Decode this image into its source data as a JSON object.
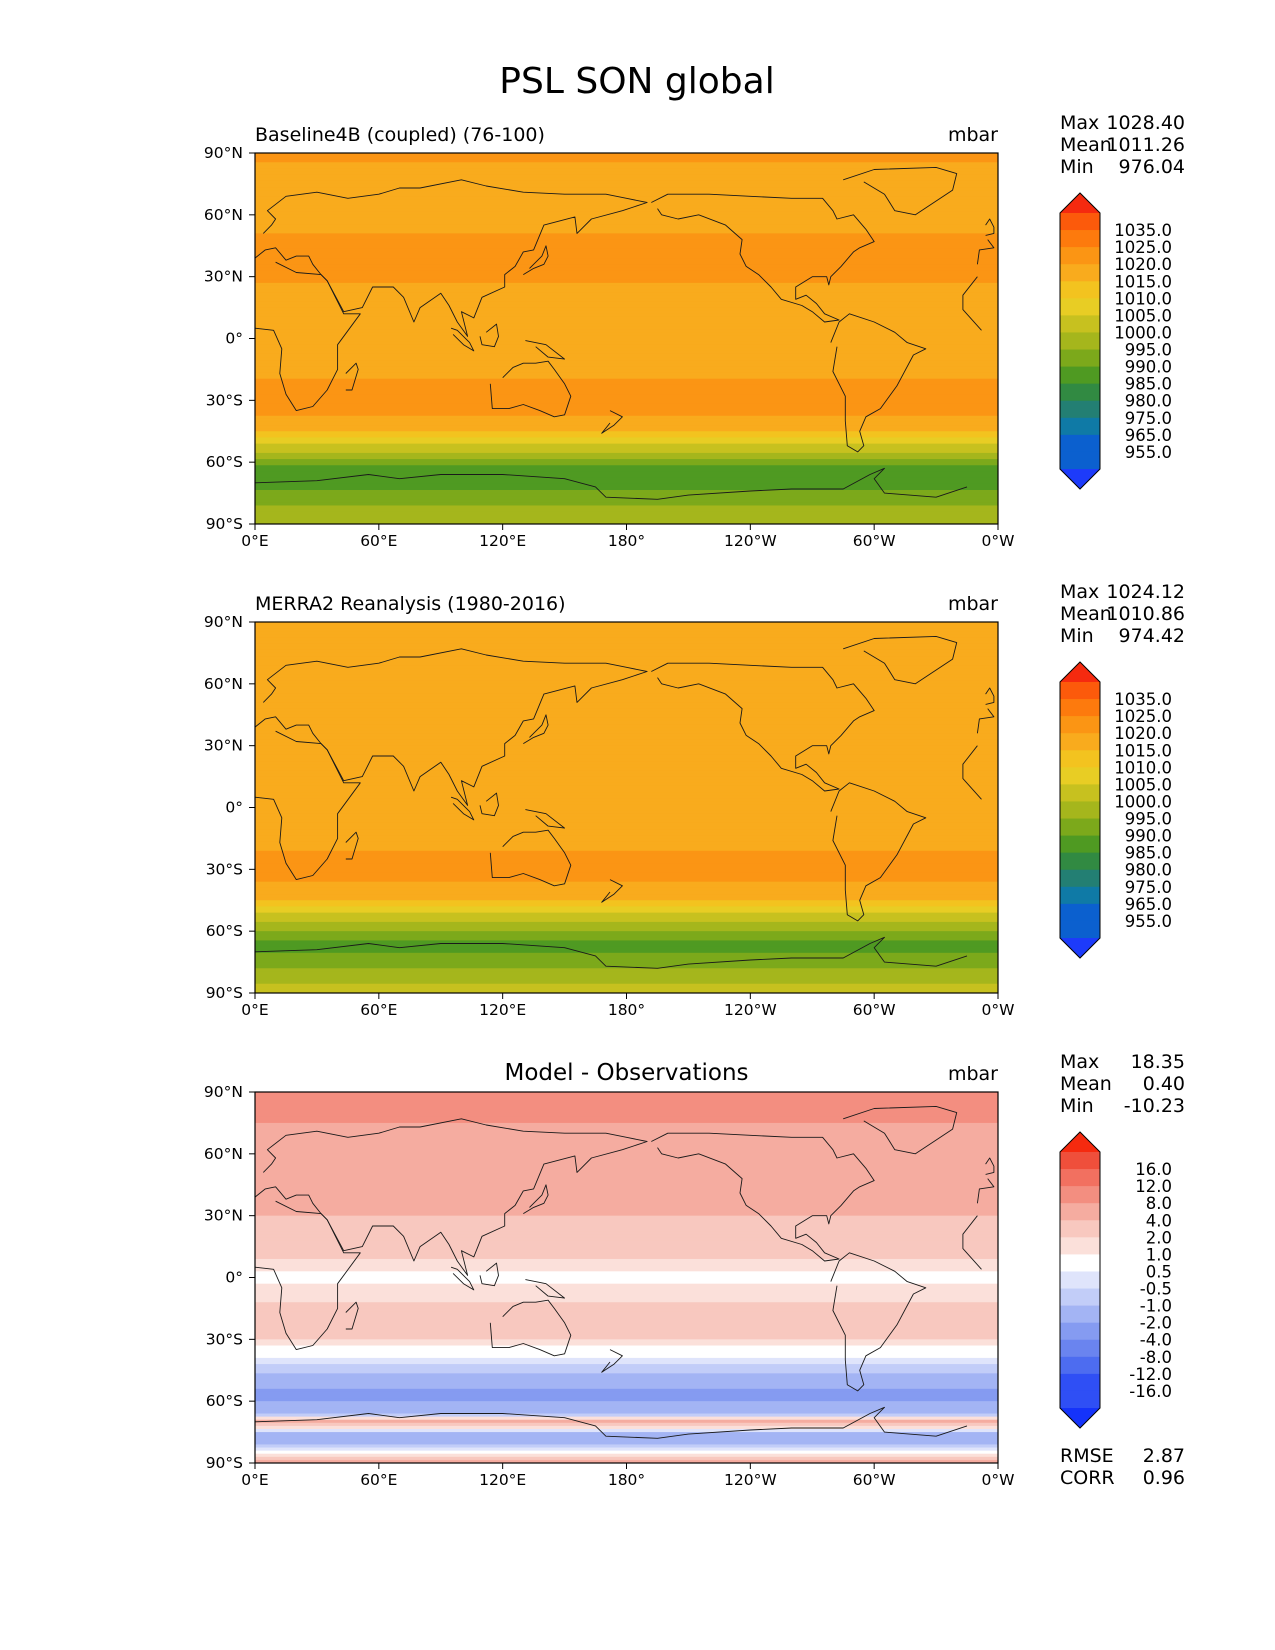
{
  "figure": {
    "title": "PSL SON global"
  },
  "axes": {
    "x_ticks": [
      "0°E",
      "60°E",
      "120°E",
      "180°",
      "120°W",
      "60°W",
      "0°W"
    ],
    "y_ticks": [
      "90°N",
      "60°N",
      "30°N",
      "0°",
      "30°S",
      "60°S",
      "90°S"
    ]
  },
  "chart_data": [
    {
      "type": "heatmap",
      "left_title": "Baseline4B (coupled) (76-100)",
      "center_title": "",
      "units": "mbar",
      "stats": [
        {
          "label": "Max",
          "value": "1028.40"
        },
        {
          "label": "Mean",
          "value": "1011.26"
        },
        {
          "label": "Min",
          "value": "976.04"
        }
      ],
      "xlim": [
        0,
        360
      ],
      "ylim": [
        -90,
        90
      ],
      "colorbar": {
        "labels": [
          "1035.0",
          "1025.0",
          "1020.0",
          "1015.0",
          "1010.0",
          "1005.0",
          "1000.0",
          "995.0",
          "990.0",
          "985.0",
          "980.0",
          "975.0",
          "965.0",
          "955.0"
        ],
        "colors": [
          "#f52a0f",
          "#fc5a0b",
          "#fd7a0d",
          "#fb9514",
          "#f9ab1d",
          "#f3c31f",
          "#e8cd24",
          "#c7c11f",
          "#a5b61c",
          "#7ca91b",
          "#4f9a22",
          "#318a42",
          "#237f73",
          "#0f7aa6",
          "#0b60cf",
          "#1d3bfa"
        ]
      },
      "band_profile": {
        "lat": [
          90,
          75,
          60,
          45,
          30,
          15,
          0,
          -15,
          -30,
          -45,
          -55,
          -62,
          -68,
          -75,
          -85,
          -90
        ],
        "value": [
          1016,
          1013,
          1012,
          1017,
          1016,
          1011,
          1010,
          1013,
          1020,
          1010,
          995,
          985,
          980,
          987,
          992,
          995
        ]
      }
    },
    {
      "type": "heatmap",
      "left_title": "MERRA2 Reanalysis (1980-2016)",
      "center_title": "",
      "units": "mbar",
      "stats": [
        {
          "label": "Max",
          "value": "1024.12"
        },
        {
          "label": "Mean",
          "value": "1010.86"
        },
        {
          "label": "Min",
          "value": "974.42"
        }
      ],
      "xlim": [
        0,
        360
      ],
      "ylim": [
        -90,
        90
      ],
      "colorbar": {
        "labels": [
          "1035.0",
          "1025.0",
          "1020.0",
          "1015.0",
          "1010.0",
          "1005.0",
          "1000.0",
          "995.0",
          "990.0",
          "985.0",
          "980.0",
          "975.0",
          "965.0",
          "955.0"
        ],
        "colors": [
          "#f52a0f",
          "#fc5a0b",
          "#fd7a0d",
          "#fb9514",
          "#f9ab1d",
          "#f3c31f",
          "#e8cd24",
          "#c7c11f",
          "#a5b61c",
          "#7ca91b",
          "#4f9a22",
          "#318a42",
          "#237f73",
          "#0f7aa6",
          "#0b60cf",
          "#1d3bfa"
        ]
      },
      "band_profile": {
        "lat": [
          90,
          75,
          60,
          45,
          30,
          15,
          0,
          -15,
          -30,
          -45,
          -55,
          -62,
          -68,
          -75,
          -85,
          -90
        ],
        "value": [
          1012,
          1011,
          1010,
          1014,
          1015,
          1011,
          1010,
          1013,
          1018,
          1010,
          995,
          987,
          983,
          988,
          995,
          997
        ]
      }
    },
    {
      "type": "heatmap",
      "left_title": "",
      "center_title": "Model - Observations",
      "units": "mbar",
      "stats": [
        {
          "label": "Max",
          "value": "18.35"
        },
        {
          "label": "Mean",
          "value": "0.40"
        },
        {
          "label": "Min",
          "value": "-10.23"
        }
      ],
      "extra_stats": [
        {
          "label": "RMSE",
          "value": "2.87"
        },
        {
          "label": "CORR",
          "value": "0.96"
        }
      ],
      "xlim": [
        0,
        360
      ],
      "ylim": [
        -90,
        90
      ],
      "colorbar": {
        "labels": [
          "16.0",
          "12.0",
          "8.0",
          "4.0",
          "2.0",
          "1.0",
          "0.5",
          "-0.5",
          "-1.0",
          "-2.0",
          "-4.0",
          "-8.0",
          "-12.0",
          "-16.0"
        ],
        "colors": [
          "#f52a0f",
          "#ef4f3b",
          "#f27060",
          "#f38e80",
          "#f5aca0",
          "#f8c8bf",
          "#fbe0da",
          "#ffffff",
          "#dfe4fb",
          "#c2cdf8",
          "#a3b4f4",
          "#859bf1",
          "#6a84ef",
          "#4d6cf0",
          "#2f4ff5",
          "#1533fa"
        ]
      },
      "band_profile": {
        "lat": [
          90,
          75,
          60,
          45,
          30,
          15,
          0,
          -15,
          -30,
          -42,
          -50,
          -58,
          -66,
          -70,
          -78,
          -90
        ],
        "value": [
          5,
          4,
          3,
          3,
          2,
          1.5,
          0.3,
          1.2,
          1,
          -1,
          -3,
          -5,
          -2,
          3,
          -4,
          3
        ]
      }
    }
  ]
}
